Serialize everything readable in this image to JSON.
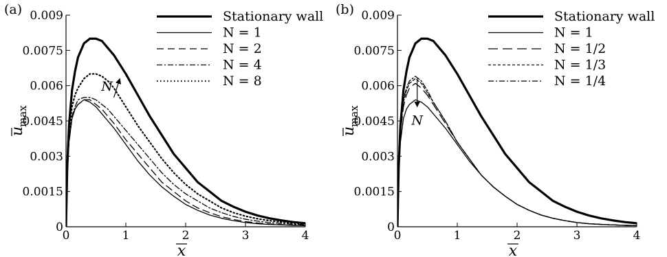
{
  "chart_data": [
    {
      "type": "line",
      "panel_label": "(a)",
      "xlabel": "x",
      "ylabel_base": "u",
      "ylabel_sub": "max",
      "xlim": [
        0,
        4
      ],
      "ylim": [
        0,
        0.009
      ],
      "xticks": [
        0,
        1,
        2,
        3,
        4
      ],
      "xtick_labels": [
        "0",
        "1",
        "2",
        "3",
        "4"
      ],
      "yticks": [
        0,
        0.0015,
        0.003,
        0.0045,
        0.006,
        0.0075,
        0.009
      ],
      "ytick_labels": [
        "0",
        "0.0015",
        "0.003",
        "0.0045",
        "0.006",
        "0.0075",
        "0.009"
      ],
      "grid": false,
      "legend_position": "top-right",
      "annotation": {
        "text": "N",
        "arrow_from": [
          0.8,
          0.0055
        ],
        "arrow_to": [
          0.9,
          0.0063
        ]
      },
      "series": [
        {
          "name": "Stationary wall",
          "style": "thick",
          "x": [
            0,
            0.02,
            0.05,
            0.1,
            0.15,
            0.2,
            0.3,
            0.4,
            0.5,
            0.6,
            0.7,
            0.8,
            1.0,
            1.2,
            1.4,
            1.6,
            1.8,
            2.0,
            2.2,
            2.4,
            2.6,
            2.8,
            3.0,
            3.2,
            3.4,
            3.6,
            3.8,
            4.0
          ],
          "y": [
            0,
            0.0025,
            0.0043,
            0.0058,
            0.0066,
            0.0072,
            0.0078,
            0.008,
            0.008,
            0.0079,
            0.0076,
            0.0073,
            0.0065,
            0.0056,
            0.0047,
            0.0039,
            0.0031,
            0.0025,
            0.0019,
            0.0015,
            0.0011,
            0.00085,
            0.00064,
            0.00048,
            0.00036,
            0.00027,
            0.0002,
            0.00015
          ]
        },
        {
          "name": "N = 1",
          "style": "solid",
          "x": [
            0,
            0.02,
            0.05,
            0.1,
            0.15,
            0.2,
            0.3,
            0.4,
            0.5,
            0.6,
            0.7,
            0.8,
            1.0,
            1.2,
            1.4,
            1.6,
            1.8,
            2.0,
            2.2,
            2.4,
            2.6,
            2.8,
            3.0,
            3.2,
            3.4,
            3.6,
            3.8,
            4.0
          ],
          "y": [
            0,
            0.0022,
            0.0036,
            0.0046,
            0.005,
            0.0052,
            0.0054,
            0.0053,
            0.0051,
            0.0048,
            0.0045,
            0.0042,
            0.0035,
            0.0028,
            0.0022,
            0.0017,
            0.0013,
            0.00095,
            0.0007,
            0.0005,
            0.00036,
            0.00026,
            0.00018,
            0.00013,
            0.0001,
            8e-05,
            6e-05,
            5e-05
          ]
        },
        {
          "name": "N = 2",
          "style": "dashed",
          "x": [
            0,
            0.02,
            0.05,
            0.1,
            0.15,
            0.2,
            0.3,
            0.4,
            0.5,
            0.6,
            0.7,
            0.8,
            1.0,
            1.2,
            1.4,
            1.6,
            1.8,
            2.0,
            2.2,
            2.4,
            2.6,
            2.8,
            3.0,
            3.2,
            3.4,
            3.6,
            3.8,
            4.0
          ],
          "y": [
            0,
            0.0022,
            0.0036,
            0.0046,
            0.005,
            0.0052,
            0.0054,
            0.0054,
            0.0052,
            0.005,
            0.0047,
            0.0044,
            0.0037,
            0.0031,
            0.0025,
            0.0019,
            0.0015,
            0.0011,
            0.0008,
            0.0006,
            0.00043,
            0.00031,
            0.00022,
            0.00016,
            0.00012,
            9e-05,
            7e-05,
            6e-05
          ]
        },
        {
          "name": "N = 4",
          "style": "dashdot",
          "x": [
            0,
            0.02,
            0.05,
            0.1,
            0.15,
            0.2,
            0.3,
            0.4,
            0.5,
            0.6,
            0.7,
            0.8,
            1.0,
            1.2,
            1.4,
            1.6,
            1.8,
            2.0,
            2.2,
            2.4,
            2.6,
            2.8,
            3.0,
            3.2,
            3.4,
            3.6,
            3.8,
            4.0
          ],
          "y": [
            0,
            0.0023,
            0.0037,
            0.0047,
            0.0051,
            0.0054,
            0.0055,
            0.0055,
            0.0054,
            0.0052,
            0.005,
            0.0047,
            0.0041,
            0.0035,
            0.0029,
            0.0023,
            0.0018,
            0.0014,
            0.0011,
            0.0008,
            0.0006,
            0.00044,
            0.00032,
            0.00024,
            0.00018,
            0.00014,
            0.00011,
            9e-05
          ]
        },
        {
          "name": "N = 8",
          "style": "dotted",
          "x": [
            0,
            0.02,
            0.05,
            0.1,
            0.15,
            0.2,
            0.3,
            0.4,
            0.5,
            0.6,
            0.7,
            0.8,
            1.0,
            1.2,
            1.4,
            1.6,
            1.8,
            2.0,
            2.2,
            2.4,
            2.6,
            2.8,
            3.0,
            3.2,
            3.4,
            3.6,
            3.8,
            4.0
          ],
          "y": [
            0,
            0.0024,
            0.004,
            0.0051,
            0.0056,
            0.0059,
            0.0063,
            0.0065,
            0.0065,
            0.0064,
            0.0062,
            0.0059,
            0.0051,
            0.0043,
            0.0036,
            0.0029,
            0.0023,
            0.0018,
            0.0014,
            0.0011,
            0.0008,
            0.0006,
            0.00045,
            0.00034,
            0.00026,
            0.0002,
            0.00016,
            0.00013
          ]
        }
      ]
    },
    {
      "type": "line",
      "panel_label": "(b)",
      "xlabel": "x",
      "ylabel_base": "u",
      "ylabel_sub": "max",
      "xlim": [
        0,
        4
      ],
      "ylim": [
        0,
        0.009
      ],
      "xticks": [
        0,
        1,
        2,
        3,
        4
      ],
      "xtick_labels": [
        "0",
        "1",
        "2",
        "3",
        "4"
      ],
      "yticks": [
        0,
        0.0015,
        0.003,
        0.0045,
        0.006,
        0.0075,
        0.009
      ],
      "ytick_labels": [
        "0",
        "0.0015",
        "0.003",
        "0.0045",
        "0.006",
        "0.0075",
        "0.009"
      ],
      "grid": false,
      "legend_position": "top-right",
      "annotation": {
        "text": "N",
        "arrow_from": [
          0.33,
          0.0063
        ],
        "arrow_to": [
          0.33,
          0.0051
        ]
      },
      "series": [
        {
          "name": "Stationary wall",
          "style": "thick",
          "x": [
            0,
            0.02,
            0.05,
            0.1,
            0.15,
            0.2,
            0.3,
            0.4,
            0.5,
            0.6,
            0.7,
            0.8,
            1.0,
            1.2,
            1.4,
            1.6,
            1.8,
            2.0,
            2.2,
            2.4,
            2.6,
            2.8,
            3.0,
            3.2,
            3.4,
            3.6,
            3.8,
            4.0
          ],
          "y": [
            0,
            0.0025,
            0.0043,
            0.0058,
            0.0066,
            0.0072,
            0.0078,
            0.008,
            0.008,
            0.0079,
            0.0076,
            0.0073,
            0.0065,
            0.0056,
            0.0047,
            0.0039,
            0.0031,
            0.0025,
            0.0019,
            0.0015,
            0.0011,
            0.00085,
            0.00064,
            0.00048,
            0.00036,
            0.00027,
            0.0002,
            0.00015
          ]
        },
        {
          "name": "N = 1",
          "style": "solid",
          "x": [
            0,
            0.02,
            0.05,
            0.1,
            0.15,
            0.2,
            0.3,
            0.4,
            0.5,
            0.6,
            0.7,
            0.8,
            1.0,
            1.2,
            1.4,
            1.6,
            1.8,
            2.0,
            2.2,
            2.4,
            2.6,
            2.8,
            3.0,
            3.2,
            3.4,
            3.6,
            3.8,
            4.0
          ],
          "y": [
            0,
            0.0022,
            0.0036,
            0.0046,
            0.005,
            0.0052,
            0.0054,
            0.0053,
            0.0051,
            0.0048,
            0.0045,
            0.0042,
            0.0035,
            0.0028,
            0.0022,
            0.0017,
            0.0013,
            0.00095,
            0.0007,
            0.0005,
            0.00036,
            0.00026,
            0.00018,
            0.00013,
            0.0001,
            8e-05,
            6e-05,
            5e-05
          ]
        },
        {
          "name": "N = 1/2",
          "style": "longdash",
          "x": [
            0,
            0.02,
            0.05,
            0.1,
            0.15,
            0.2,
            0.3,
            0.4,
            0.5,
            0.6,
            0.7,
            0.8,
            1.0,
            1.2,
            1.4,
            1.6,
            1.8,
            2.0,
            2.2,
            2.4,
            2.6,
            2.8,
            3.0,
            3.2,
            3.4,
            3.6,
            3.8,
            4.0
          ],
          "y": [
            0,
            0.0025,
            0.004,
            0.0051,
            0.0056,
            0.0059,
            0.0061,
            0.0059,
            0.0056,
            0.0052,
            0.0048,
            0.0044,
            0.0036,
            0.0029,
            0.0022,
            0.0017,
            0.0013,
            0.00095,
            0.0007,
            0.0005,
            0.00036,
            0.00026,
            0.00018,
            0.00013,
            0.0001,
            8e-05,
            6e-05,
            5e-05
          ]
        },
        {
          "name": "N = 1/3",
          "style": "shortdash",
          "x": [
            0,
            0.02,
            0.05,
            0.1,
            0.15,
            0.2,
            0.3,
            0.4,
            0.5,
            0.6,
            0.7,
            0.8,
            1.0,
            1.2,
            1.4,
            1.6,
            1.8,
            2.0,
            2.2,
            2.4,
            2.6,
            2.8,
            3.0,
            3.2,
            3.4,
            3.6,
            3.8,
            4.0
          ],
          "y": [
            0,
            0.0026,
            0.0042,
            0.0053,
            0.0058,
            0.0061,
            0.0063,
            0.0061,
            0.0057,
            0.0053,
            0.0049,
            0.0045,
            0.0036,
            0.0029,
            0.0022,
            0.0017,
            0.0013,
            0.00095,
            0.0007,
            0.0005,
            0.00036,
            0.00026,
            0.00018,
            0.00013,
            0.0001,
            8e-05,
            6e-05,
            5e-05
          ]
        },
        {
          "name": "N = 1/4",
          "style": "dashdot",
          "x": [
            0,
            0.02,
            0.05,
            0.1,
            0.15,
            0.2,
            0.3,
            0.4,
            0.5,
            0.6,
            0.7,
            0.8,
            1.0,
            1.2,
            1.4,
            1.6,
            1.8,
            2.0,
            2.2,
            2.4,
            2.6,
            2.8,
            3.0,
            3.2,
            3.4,
            3.6,
            3.8,
            4.0
          ],
          "y": [
            0,
            0.0026,
            0.0043,
            0.0054,
            0.0059,
            0.0062,
            0.0064,
            0.0062,
            0.0058,
            0.0053,
            0.0049,
            0.0045,
            0.0036,
            0.0029,
            0.0022,
            0.0017,
            0.0013,
            0.00095,
            0.0007,
            0.0005,
            0.00036,
            0.00026,
            0.00018,
            0.00013,
            0.0001,
            8e-05,
            6e-05,
            5e-05
          ]
        }
      ]
    }
  ]
}
